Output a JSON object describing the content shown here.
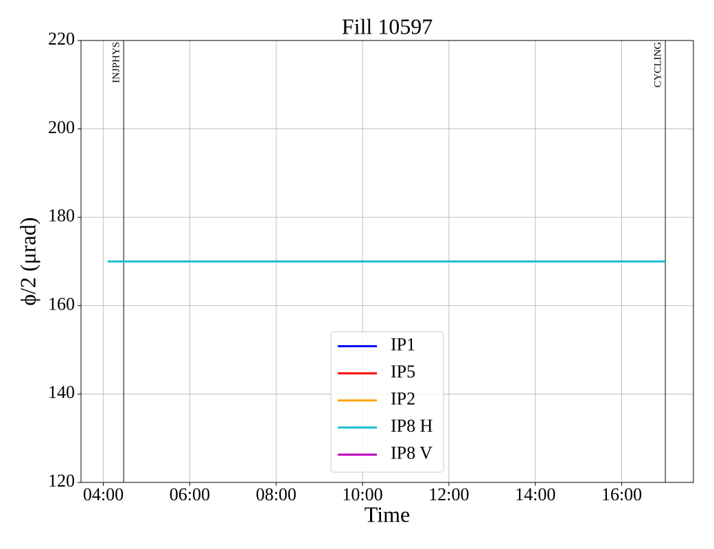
{
  "chart_data": {
    "type": "line",
    "title": "Fill 10597",
    "xlabel": "Time",
    "ylabel": "ϕ/2 (μrad)",
    "x": [
      4.1,
      17.01
    ],
    "series": [
      {
        "name": "IP1",
        "color": "#0000ff",
        "values": [
          null,
          null
        ]
      },
      {
        "name": "IP5",
        "color": "#ff0000",
        "values": [
          null,
          null
        ]
      },
      {
        "name": "IP2",
        "color": "#ffa500",
        "values": [
          null,
          null
        ]
      },
      {
        "name": "IP8 H",
        "color": "#17becf",
        "values": [
          170,
          170
        ]
      },
      {
        "name": "IP8 V",
        "color": "#bf00bf",
        "values": [
          null,
          null
        ]
      }
    ],
    "events": [
      {
        "label": "INJPHYS",
        "x": 4.47
      },
      {
        "label": "CYCLING",
        "x": 17.01
      }
    ],
    "xlim": [
      3.483,
      17.66
    ],
    "xticks": [
      {
        "value": 4,
        "label": "04:00"
      },
      {
        "value": 6,
        "label": "06:00"
      },
      {
        "value": 8,
        "label": "08:00"
      },
      {
        "value": 10,
        "label": "10:00"
      },
      {
        "value": 12,
        "label": "12:00"
      },
      {
        "value": 14,
        "label": "14:00"
      },
      {
        "value": 16,
        "label": "16:00"
      }
    ],
    "ylim": [
      120,
      220
    ],
    "yticks": [
      120,
      140,
      160,
      180,
      200,
      220
    ],
    "grid": true,
    "legend": "lower center"
  }
}
